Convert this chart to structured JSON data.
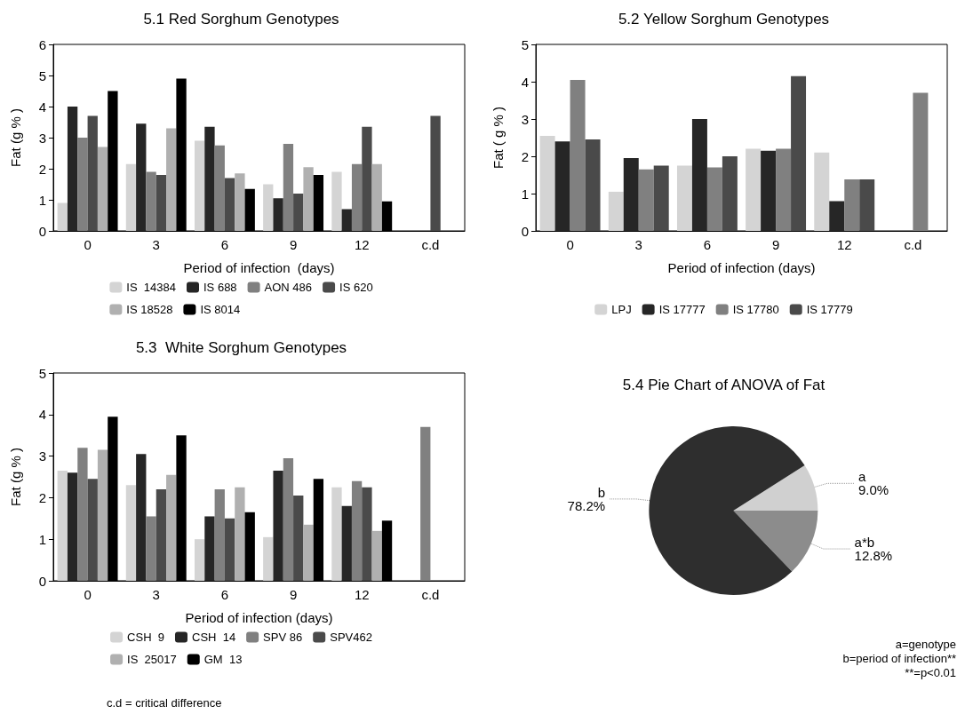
{
  "chart_data": [
    {
      "type": "bar",
      "title": "5.1 Red Sorghum Genotypes",
      "xlabel": "Period of infection  (days)",
      "ylabel": "Fat (g % )",
      "categories": [
        "0",
        "3",
        "6",
        "9",
        "12",
        "c.d"
      ],
      "ylim": [
        0,
        6
      ],
      "yticks": [
        0,
        1,
        2,
        3,
        4,
        5,
        6
      ],
      "legend": "bottom",
      "series": [
        {
          "name": "IS  14384",
          "color": "#d4d4d4",
          "values": [
            0.9,
            2.15,
            2.9,
            1.5,
            1.9,
            null
          ]
        },
        {
          "name": "IS 688",
          "color": "#262626",
          "values": [
            4.0,
            3.45,
            3.35,
            1.05,
            0.7,
            null
          ]
        },
        {
          "name": "AON 486",
          "color": "#808080",
          "values": [
            3.0,
            1.9,
            2.75,
            2.8,
            2.15,
            null
          ]
        },
        {
          "name": "IS 620",
          "color": "#4a4a4a",
          "values": [
            3.7,
            1.8,
            1.7,
            1.2,
            3.35,
            3.7
          ]
        },
        {
          "name": "IS 18528",
          "color": "#b0b0b0",
          "values": [
            2.7,
            3.3,
            1.85,
            2.05,
            2.15,
            null
          ]
        },
        {
          "name": "IS 8014",
          "color": "#000000",
          "values": [
            4.5,
            4.9,
            1.35,
            1.8,
            0.95,
            null
          ]
        }
      ]
    },
    {
      "type": "bar",
      "title": "5.2 Yellow Sorghum Genotypes",
      "xlabel": "Period of infection (days)",
      "ylabel": "Fat ( g % )",
      "categories": [
        "0",
        "3",
        "6",
        "9",
        "12",
        "c.d"
      ],
      "ylim": [
        0,
        5
      ],
      "yticks": [
        0,
        1,
        2,
        3,
        4,
        5
      ],
      "legend": "bottom",
      "series": [
        {
          "name": "LPJ",
          "color": "#d4d4d4",
          "values": [
            2.55,
            1.05,
            1.75,
            2.2,
            2.1,
            null
          ]
        },
        {
          "name": "IS 17777",
          "color": "#262626",
          "values": [
            2.4,
            1.95,
            3.0,
            2.15,
            0.8,
            null
          ]
        },
        {
          "name": "IS 17780",
          "color": "#808080",
          "values": [
            4.05,
            1.65,
            1.7,
            2.2,
            1.38,
            3.7
          ]
        },
        {
          "name": "IS 17779",
          "color": "#4a4a4a",
          "values": [
            2.45,
            1.75,
            2.0,
            4.15,
            1.38,
            null
          ]
        }
      ]
    },
    {
      "type": "bar",
      "title": "5.3  White Sorghum Genotypes",
      "xlabel": "Period of infection (days)",
      "ylabel": "Fat (g % )",
      "categories": [
        "0",
        "3",
        "6",
        "9",
        "12",
        "c.d"
      ],
      "ylim": [
        0,
        5
      ],
      "yticks": [
        0,
        1,
        2,
        3,
        4,
        5
      ],
      "legend": "bottom",
      "annotations": [
        "c.d = critical difference"
      ],
      "series": [
        {
          "name": "CSH  9",
          "color": "#d4d4d4",
          "values": [
            2.65,
            2.3,
            1.0,
            1.05,
            2.25,
            null
          ]
        },
        {
          "name": "CSH  14",
          "color": "#262626",
          "values": [
            2.6,
            3.05,
            1.55,
            2.65,
            1.8,
            null
          ]
        },
        {
          "name": "SPV 86",
          "color": "#808080",
          "values": [
            3.2,
            1.55,
            2.2,
            2.95,
            2.4,
            3.7
          ]
        },
        {
          "name": "SPV462",
          "color": "#4a4a4a",
          "values": [
            2.45,
            2.2,
            1.5,
            2.05,
            2.25,
            null
          ]
        },
        {
          "name": "IS  25017",
          "color": "#b0b0b0",
          "values": [
            3.15,
            2.55,
            2.25,
            1.35,
            1.2,
            null
          ]
        },
        {
          "name": "GM  13",
          "color": "#000000",
          "values": [
            3.95,
            3.5,
            1.65,
            2.45,
            1.45,
            null
          ]
        }
      ]
    },
    {
      "type": "pie",
      "title": "5.4 Pie Chart of ANOVA of Fat",
      "categories": [
        "a",
        "a*b",
        "b"
      ],
      "values": [
        9.0,
        12.8,
        78.2
      ],
      "colors": [
        "#d0d0d0",
        "#8c8c8c",
        "#2e2e2e"
      ],
      "value_labels": [
        "9.0%",
        "12.8%",
        "78.2%"
      ],
      "annotations": [
        "a=genotype",
        "b=period of infection**",
        "**=p<0.01"
      ]
    }
  ]
}
